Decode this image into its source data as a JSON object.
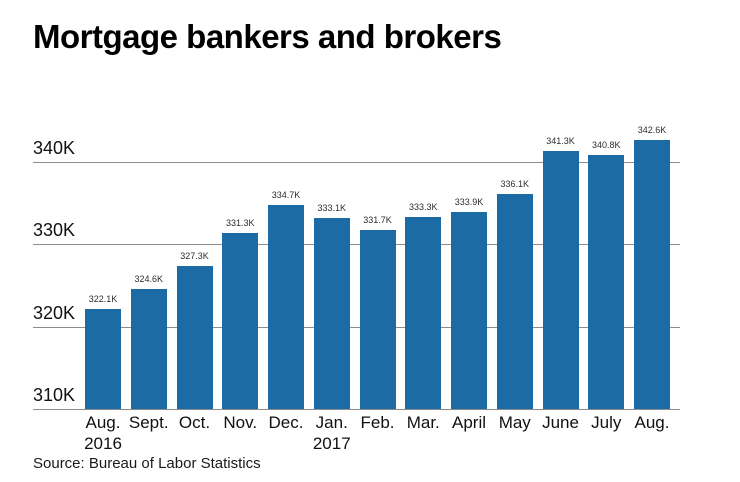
{
  "title": "Mortgage bankers and brokers",
  "source_note": "Source: Bureau of Labor Statistics",
  "colors": {
    "bar_fill": "#1c6ba5",
    "gridline": "#8c8c8c",
    "title_text": "#000000",
    "axis_text": "#111111",
    "value_label_text": "#2d2d2d",
    "source_text": "#1a1a1a"
  },
  "chart_data": {
    "type": "bar",
    "title": "Mortgage bankers and brokers",
    "source": "Source: Bureau of Labor Statistics",
    "categories": [
      "Aug.",
      "Sept.",
      "Oct.",
      "Nov.",
      "Dec.",
      "Jan.",
      "Feb.",
      "Mar.",
      "April",
      "May",
      "June",
      "July",
      "Aug."
    ],
    "category_sublabels": [
      "2016",
      "",
      "",
      "",
      "",
      "2017",
      "",
      "",
      "",
      "",
      "",
      "",
      ""
    ],
    "values": [
      322.1,
      324.6,
      327.3,
      331.3,
      334.7,
      333.1,
      331.7,
      333.3,
      333.9,
      336.1,
      341.3,
      340.8,
      342.6
    ],
    "value_labels": [
      "322.1K",
      "324.6K",
      "327.3K",
      "331.3K",
      "334.7K",
      "333.1K",
      "331.7K",
      "333.3K",
      "333.9K",
      "336.1K",
      "341.3K",
      "340.8K",
      "342.6K"
    ],
    "yticks": [
      "310K",
      "320K",
      "330K",
      "340K"
    ],
    "ytick_values": [
      310,
      320,
      330,
      340
    ],
    "ylim": [
      310,
      345
    ],
    "xlabel": "",
    "ylabel": "",
    "grid": true,
    "legend_position": "none"
  }
}
